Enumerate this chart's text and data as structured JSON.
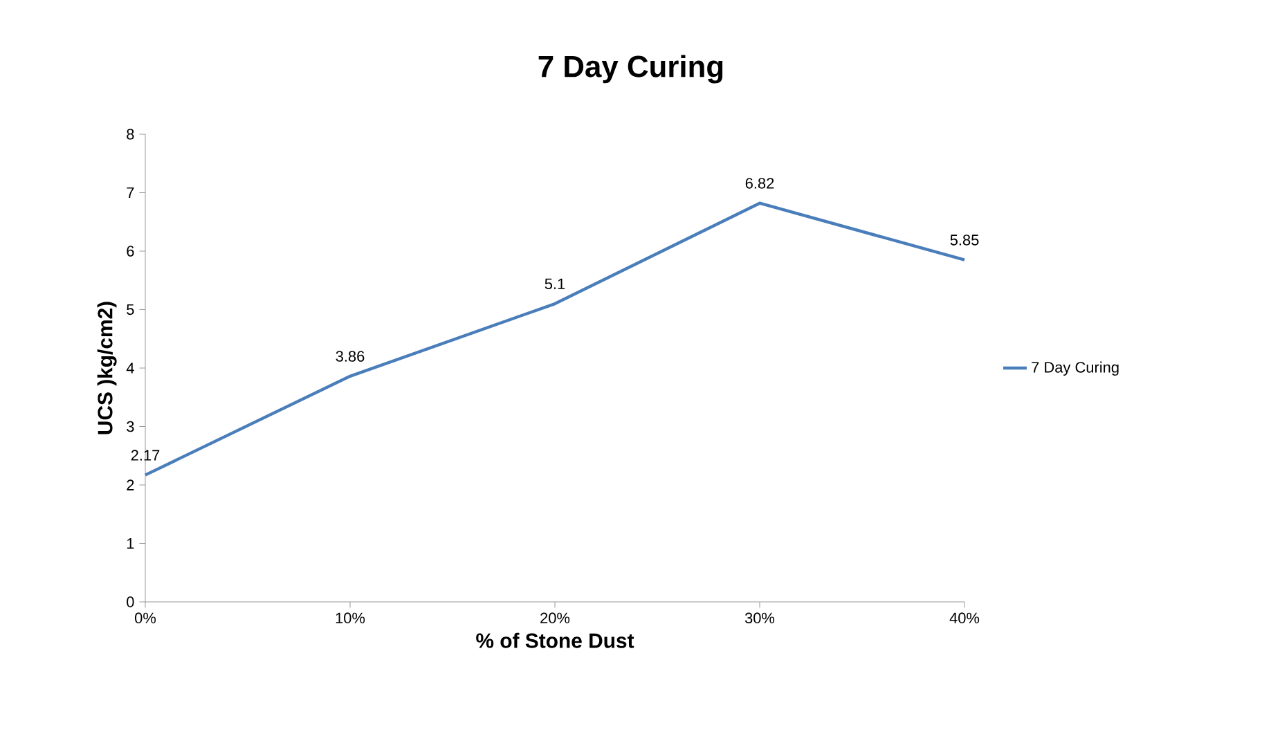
{
  "chart_data": {
    "type": "line",
    "title": "7 Day Curing",
    "xlabel": "% of Stone Dust",
    "ylabel": "UCS )kg/cm2)",
    "categories": [
      "0%",
      "10%",
      "20%",
      "30%",
      "40%"
    ],
    "series": [
      {
        "name": "7 Day Curing",
        "color": "#4a7ebb",
        "values": [
          2.17,
          3.86,
          5.1,
          6.82,
          5.85
        ]
      }
    ],
    "ylim": [
      0,
      8
    ],
    "yticks": [
      0,
      1,
      2,
      3,
      4,
      5,
      6,
      7,
      8
    ],
    "data_labels": true,
    "legend": "right",
    "grid": false,
    "marker": "none",
    "line_style": "solid"
  }
}
